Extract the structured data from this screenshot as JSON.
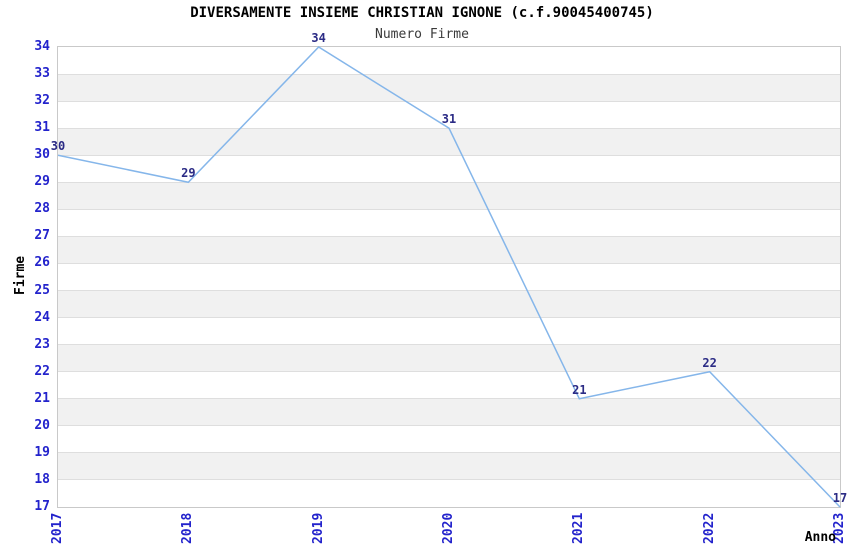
{
  "title": "DIVERSAMENTE INSIEME CHRISTIAN IGNONE (c.f.90045400745)",
  "subtitle": "Numero Firme",
  "chart_data": {
    "type": "line",
    "x": [
      2017,
      2018,
      2019,
      2020,
      2021,
      2022,
      2023
    ],
    "series": [
      {
        "name": "Numero Firme",
        "values": [
          30,
          29,
          34,
          31,
          21,
          22,
          17
        ]
      }
    ],
    "data_labels": [
      "30",
      "29",
      "34",
      "31",
      "21",
      "22",
      "17"
    ],
    "xlabel": "Anno",
    "ylabel": "Firme",
    "ylim": [
      17,
      34
    ],
    "ytick_step": 1,
    "yticks": [
      34,
      33,
      32,
      31,
      30,
      29,
      28,
      27,
      26,
      25,
      24,
      23,
      22,
      21,
      20,
      19,
      18,
      17
    ],
    "grid": "horizontal-stripes-alternating",
    "legend_position": "none"
  },
  "colors": {
    "line": "#85b6ea",
    "tick_label": "#2323cc",
    "data_label": "#2b2b85",
    "stripe": "#f1f1f1",
    "gridline": "#dedede",
    "plot_border": "#c9c9c9",
    "title": "#000000",
    "subtitle": "#3a3a3a",
    "background": "#ffffff"
  }
}
